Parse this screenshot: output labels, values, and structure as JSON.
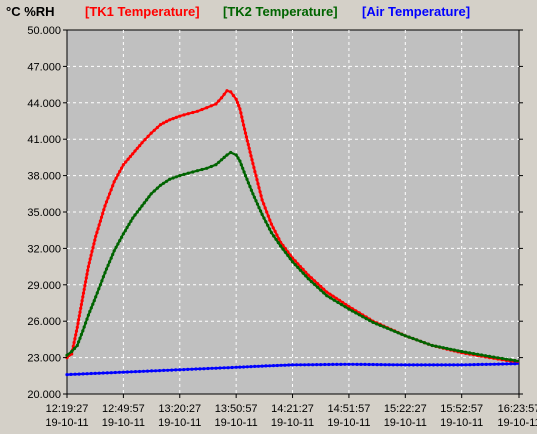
{
  "chart_data": {
    "type": "line",
    "unit_label": "°C %RH",
    "ylim": [
      20,
      50
    ],
    "yticks": [
      "20.000",
      "23.000",
      "26.000",
      "29.000",
      "32.000",
      "35.000",
      "38.000",
      "41.000",
      "44.000",
      "47.000",
      "50.000"
    ],
    "ytick_values": [
      20,
      23,
      26,
      29,
      32,
      35,
      38,
      41,
      44,
      47,
      50
    ],
    "xlim": [
      "2011-10-19 12:19:27",
      "2011-10-19 16:23:57"
    ],
    "xtick_times": [
      "12:19:27",
      "12:49:57",
      "13:20:27",
      "13:50:57",
      "14:21:27",
      "14:51:57",
      "15:22:27",
      "15:52:57",
      "16:23:57"
    ],
    "xtick_date": "19-10-11",
    "grid": true,
    "legend_position": "top",
    "colors": {
      "background": "#d4d0c8",
      "plot_bg": "#c0c0c0",
      "grid": "#ffffff"
    },
    "series": [
      {
        "name": "[TK1 Temperature]",
        "color": "#ff0000",
        "points": [
          [
            "12:19:27",
            23.0
          ],
          [
            "12:22:00",
            23.3
          ],
          [
            "12:25:00",
            25.5
          ],
          [
            "12:28:00",
            28.0
          ],
          [
            "12:31:00",
            30.5
          ],
          [
            "12:35:00",
            33.0
          ],
          [
            "12:40:00",
            35.5
          ],
          [
            "12:45:00",
            37.5
          ],
          [
            "12:49:57",
            38.9
          ],
          [
            "12:55:00",
            39.8
          ],
          [
            "13:00:00",
            40.7
          ],
          [
            "13:05:00",
            41.5
          ],
          [
            "13:10:00",
            42.2
          ],
          [
            "13:15:00",
            42.6
          ],
          [
            "13:20:27",
            42.9
          ],
          [
            "13:25:00",
            43.1
          ],
          [
            "13:30:00",
            43.3
          ],
          [
            "13:35:00",
            43.6
          ],
          [
            "13:40:00",
            43.9
          ],
          [
            "13:43:00",
            44.4
          ],
          [
            "13:46:00",
            45.0
          ],
          [
            "13:48:00",
            44.9
          ],
          [
            "13:50:57",
            44.3
          ],
          [
            "13:53:00",
            43.5
          ],
          [
            "13:56:00",
            41.5
          ],
          [
            "14:00:00",
            39.0
          ],
          [
            "14:05:00",
            36.0
          ],
          [
            "14:10:00",
            34.0
          ],
          [
            "14:15:00",
            32.5
          ],
          [
            "14:21:27",
            31.2
          ],
          [
            "14:30:00",
            29.8
          ],
          [
            "14:40:00",
            28.4
          ],
          [
            "14:51:57",
            27.2
          ],
          [
            "15:05:00",
            26.0
          ],
          [
            "15:22:27",
            24.8
          ],
          [
            "15:37:00",
            24.0
          ],
          [
            "15:52:57",
            23.4
          ],
          [
            "16:08:00",
            23.0
          ],
          [
            "16:23:57",
            22.6
          ]
        ]
      },
      {
        "name": "[TK2 Temperature]",
        "color": "#006400",
        "points": [
          [
            "12:19:27",
            23.2
          ],
          [
            "12:22:00",
            23.5
          ],
          [
            "12:25:00",
            24.0
          ],
          [
            "12:28:00",
            25.2
          ],
          [
            "12:31:00",
            26.5
          ],
          [
            "12:35:00",
            28.0
          ],
          [
            "12:40:00",
            30.0
          ],
          [
            "12:45:00",
            31.8
          ],
          [
            "12:49:57",
            33.2
          ],
          [
            "12:55:00",
            34.5
          ],
          [
            "13:00:00",
            35.5
          ],
          [
            "13:05:00",
            36.5
          ],
          [
            "13:10:00",
            37.2
          ],
          [
            "13:15:00",
            37.7
          ],
          [
            "13:20:27",
            38.0
          ],
          [
            "13:25:00",
            38.2
          ],
          [
            "13:30:00",
            38.4
          ],
          [
            "13:35:00",
            38.6
          ],
          [
            "13:40:00",
            38.9
          ],
          [
            "13:43:00",
            39.3
          ],
          [
            "13:46:00",
            39.7
          ],
          [
            "13:48:00",
            39.9
          ],
          [
            "13:50:57",
            39.7
          ],
          [
            "13:53:00",
            39.2
          ],
          [
            "13:56:00",
            38.0
          ],
          [
            "14:00:00",
            36.5
          ],
          [
            "14:05:00",
            34.8
          ],
          [
            "14:10:00",
            33.3
          ],
          [
            "14:15:00",
            32.2
          ],
          [
            "14:21:27",
            30.9
          ],
          [
            "14:30:00",
            29.5
          ],
          [
            "14:40:00",
            28.1
          ],
          [
            "14:51:57",
            27.0
          ],
          [
            "15:05:00",
            25.9
          ],
          [
            "15:22:27",
            24.8
          ],
          [
            "15:37:00",
            24.0
          ],
          [
            "15:52:57",
            23.5
          ],
          [
            "16:08:00",
            23.1
          ],
          [
            "16:23:57",
            22.7
          ]
        ]
      },
      {
        "name": "[Air Temperature]",
        "color": "#0000ff",
        "points": [
          [
            "12:19:27",
            21.6
          ],
          [
            "12:49:57",
            21.8
          ],
          [
            "13:20:27",
            22.0
          ],
          [
            "13:50:57",
            22.2
          ],
          [
            "14:05:00",
            22.3
          ],
          [
            "14:21:27",
            22.4
          ],
          [
            "14:51:57",
            22.45
          ],
          [
            "15:22:27",
            22.4
          ],
          [
            "15:52:57",
            22.4
          ],
          [
            "16:23:57",
            22.5
          ]
        ]
      }
    ]
  }
}
